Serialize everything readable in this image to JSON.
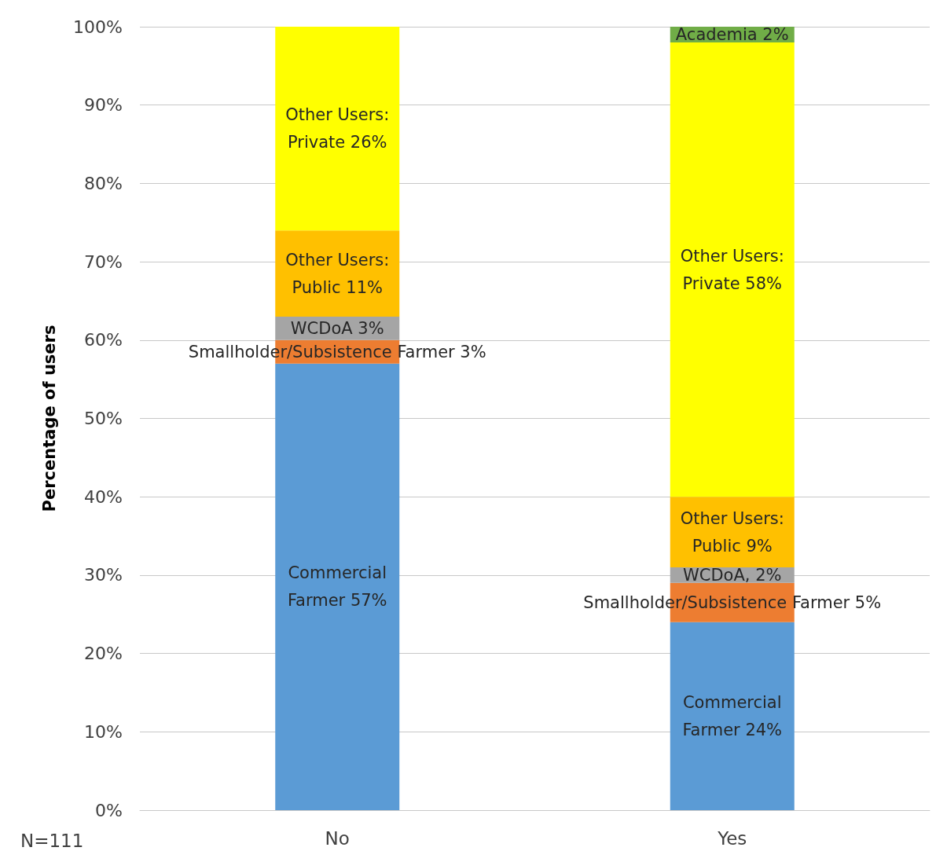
{
  "chart_data": {
    "type": "bar",
    "stacked": true,
    "ylabel": "Percentage of users",
    "categories": [
      "No",
      "Yes"
    ],
    "series": [
      {
        "color": "#5b9bd5",
        "values": [
          57,
          24
        ],
        "value_labels": [
          "Commercial\nFarmer 57%",
          "Commercial\nFarmer 24%"
        ]
      },
      {
        "color": "#ed7d31",
        "values": [
          3,
          5
        ],
        "value_labels": [
          "Smallholder/Subsistence Farmer 3%",
          "Smallholder/Subsistence Farmer 5%"
        ]
      },
      {
        "color": "#a5a5a5",
        "values": [
          3,
          2
        ],
        "value_labels": [
          "WCDoA 3%",
          "WCDoA, 2%"
        ]
      },
      {
        "color": "#ffc000",
        "values": [
          11,
          9
        ],
        "value_labels": [
          "Other Users:\nPublic 11%",
          "Other Users:\nPublic 9%"
        ]
      },
      {
        "color": "#ffff00",
        "values": [
          26,
          58
        ],
        "value_labels": [
          "Other Users:\nPrivate 26%",
          "Other Users:\nPrivate 58%"
        ]
      },
      {
        "color": "#70ad47",
        "values": [
          null,
          2
        ],
        "value_labels": [
          null,
          "Academia 2%"
        ]
      }
    ],
    "ylim": [
      0,
      100
    ],
    "yticks": [
      {
        "value": 0,
        "label": "0%"
      },
      {
        "value": 10,
        "label": "10%"
      },
      {
        "value": 20,
        "label": "20%"
      },
      {
        "value": 30,
        "label": "30%"
      },
      {
        "value": 40,
        "label": "40%"
      },
      {
        "value": 50,
        "label": "50%"
      },
      {
        "value": 60,
        "label": "60%"
      },
      {
        "value": 70,
        "label": "70%"
      },
      {
        "value": 80,
        "label": "80%"
      },
      {
        "value": 90,
        "label": "90%"
      },
      {
        "value": 100,
        "label": "100%"
      }
    ],
    "grid": "y",
    "annotations": [
      "N=111"
    ]
  }
}
